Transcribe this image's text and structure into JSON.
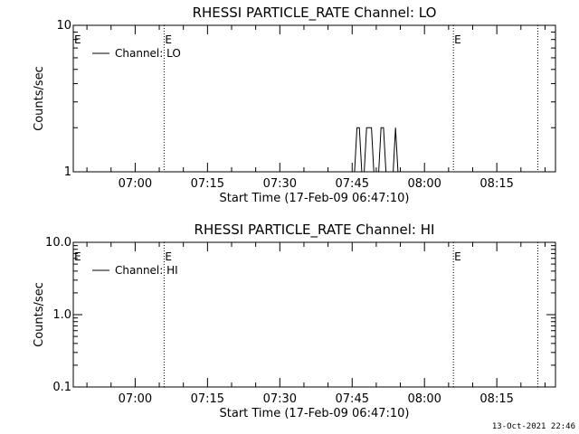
{
  "footer_timestamp": "13-Oct-2021 22:46",
  "chart_data": [
    {
      "type": "line",
      "title": "RHESSI PARTICLE_RATE Channel: LO",
      "xlabel": "Start Time (17-Feb-09 06:47:10)",
      "ylabel": "Counts/sec",
      "yscale": "log",
      "ylim": [
        1,
        10
      ],
      "y_tick_labels": [
        "1",
        "10"
      ],
      "xlim": [
        "06:47:10",
        "08:27:10"
      ],
      "x_ticks": [
        "07:00",
        "07:15",
        "07:30",
        "07:45",
        "08:00",
        "08:15"
      ],
      "grid": false,
      "legend": {
        "position": "top-left",
        "entries": [
          "Channel: LO"
        ]
      },
      "event_markers": [
        {
          "time": "07:06:00",
          "label": "E"
        },
        {
          "time": "08:06:00",
          "label": "E"
        },
        {
          "time": "08:23:30",
          "label": ""
        }
      ],
      "series": [
        {
          "name": "Channel: LO",
          "points": [
            [
              "07:45:00",
              1
            ],
            [
              "07:45:30",
              1
            ],
            [
              "07:46:00",
              2
            ],
            [
              "07:46:30",
              2
            ],
            [
              "07:47:00",
              1
            ],
            [
              "07:47:30",
              1
            ],
            [
              "07:48:00",
              2
            ],
            [
              "07:49:00",
              2
            ],
            [
              "07:49:30",
              1
            ],
            [
              "07:50:30",
              1
            ],
            [
              "07:51:00",
              2
            ],
            [
              "07:51:30",
              2
            ],
            [
              "07:52:00",
              1
            ],
            [
              "07:53:30",
              1
            ],
            [
              "07:54:00",
              2
            ],
            [
              "07:54:30",
              1
            ]
          ]
        }
      ]
    },
    {
      "type": "line",
      "title": "RHESSI PARTICLE_RATE Channel: HI",
      "xlabel": "Start Time (17-Feb-09 06:47:10)",
      "ylabel": "Counts/sec",
      "yscale": "log",
      "ylim": [
        0.1,
        10
      ],
      "y_tick_labels": [
        "0.1",
        "1.0",
        "10.0"
      ],
      "xlim": [
        "06:47:10",
        "08:27:10"
      ],
      "x_ticks": [
        "07:00",
        "07:15",
        "07:30",
        "07:45",
        "08:00",
        "08:15"
      ],
      "grid": false,
      "legend": {
        "position": "top-left",
        "entries": [
          "Channel: HI"
        ]
      },
      "event_markers": [
        {
          "time": "07:06:00",
          "label": "E"
        },
        {
          "time": "08:06:00",
          "label": "E"
        },
        {
          "time": "08:23:30",
          "label": ""
        }
      ],
      "series": [
        {
          "name": "Channel: HI",
          "points": []
        }
      ]
    }
  ]
}
